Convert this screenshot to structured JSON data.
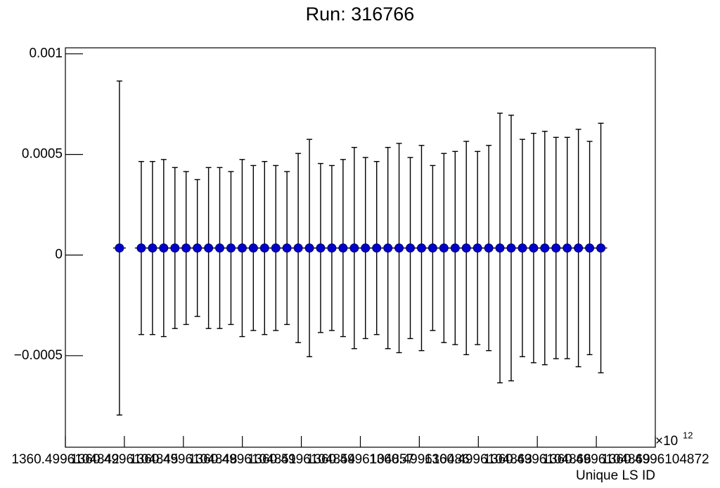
{
  "chart_data": {
    "type": "errorbar",
    "title": "Run: 316766",
    "x_label": "Unique LS ID",
    "x_multiplier": "×10",
    "x_multiplier_exp": "12",
    "x": [
      1360.499610484475,
      1360.499610484586,
      1360.499610484643,
      1360.4996104847,
      1360.499610484757,
      1360.499610484814,
      1360.499610484871,
      1360.499610484928,
      1360.499610484985,
      1360.499610485042,
      1360.499610485099,
      1360.499610485156,
      1360.499610485213,
      1360.49961048527,
      1360.499610485327,
      1360.499610485384,
      1360.499610485441,
      1360.499610485498,
      1360.499610485555,
      1360.499610485612,
      1360.499610485669,
      1360.499610485726,
      1360.499610485783,
      1360.49961048584,
      1360.499610485897,
      1360.499610485954,
      1360.499610486011,
      1360.499610486068,
      1360.499610486125,
      1360.499610486182,
      1360.499610486239,
      1360.499610486296,
      1360.499610486353,
      1360.49961048641,
      1360.499610486467,
      1360.499610486524,
      1360.499610486581,
      1360.499610486638,
      1360.499610486695,
      1360.499610486752,
      1360.499610486809,
      1360.499610486866,
      1360.499610486923
    ],
    "values": [
      3.5e-05,
      3.5e-05,
      3.5e-05,
      3.5e-05,
      3.5e-05,
      3.5e-05,
      3.5e-05,
      3.5e-05,
      3.5e-05,
      3.5e-05,
      3.5e-05,
      3.5e-05,
      3.5e-05,
      3.5e-05,
      3.5e-05,
      3.5e-05,
      3.5e-05,
      3.5e-05,
      3.5e-05,
      3.5e-05,
      3.5e-05,
      3.5e-05,
      3.5e-05,
      3.5e-05,
      3.5e-05,
      3.5e-05,
      3.5e-05,
      3.5e-05,
      3.5e-05,
      3.5e-05,
      3.5e-05,
      3.5e-05,
      3.5e-05,
      3.5e-05,
      3.5e-05,
      3.5e-05,
      3.5e-05,
      3.5e-05,
      3.5e-05,
      3.5e-05,
      3.5e-05,
      3.5e-05,
      3.5e-05
    ],
    "errors": [
      0.00083,
      0.00043,
      0.00043,
      0.00044,
      0.0004,
      0.00038,
      0.00034,
      0.0004,
      0.0004,
      0.00038,
      0.00044,
      0.00041,
      0.00043,
      0.00041,
      0.00038,
      0.00047,
      0.00054,
      0.00042,
      0.00041,
      0.00044,
      0.0005,
      0.00045,
      0.00043,
      0.0005,
      0.00052,
      0.00045,
      0.00051,
      0.00041,
      0.00047,
      0.00048,
      0.00053,
      0.00048,
      0.00051,
      0.00067,
      0.00066,
      0.00054,
      0.00057,
      0.00058,
      0.00055,
      0.00055,
      0.00059,
      0.00053,
      0.00062
    ],
    "color": "#0000cc",
    "xlim": [
      1360.4996104842,
      1360.4996104872
    ],
    "xticks": [
      1360.4996104842,
      1360.4996104845,
      1360.4996104848,
      1360.4996104851,
      1360.4996104854,
      1360.4996104857,
      1360.499610486,
      1360.4996104863,
      1360.4996104866,
      1360.4996104869,
      1360.4996104872
    ],
    "ylim": [
      -0.000955,
      0.00103
    ],
    "yticks": [
      {
        "value": -0.0005,
        "label": "−0.0005"
      },
      0,
      0.0005,
      0.001
    ],
    "grid": false
  }
}
